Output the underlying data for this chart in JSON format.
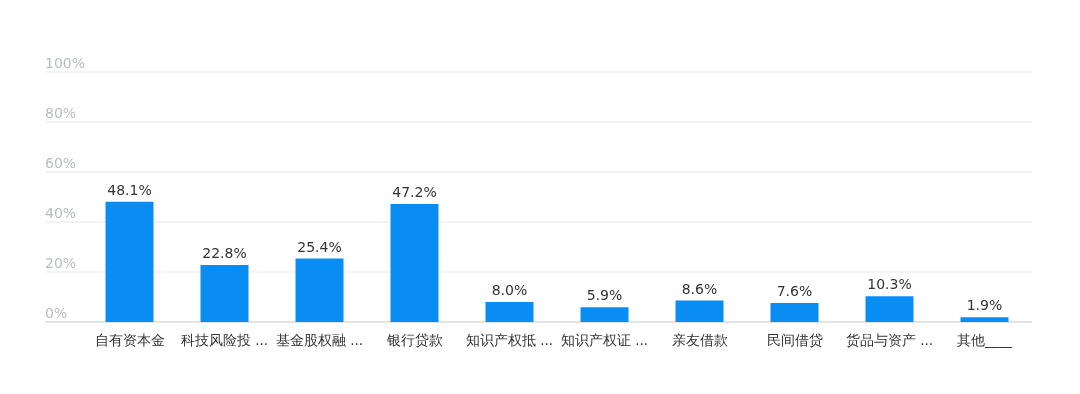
{
  "chart_data": {
    "type": "bar",
    "categories": [
      "自有资本金",
      "科技风险投 ...",
      "基金股权融 ...",
      "银行贷款",
      "知识产权抵 ...",
      "知识产权证 ...",
      "亲友借款",
      "民间借贷",
      "货品与资产 ...",
      "其他____"
    ],
    "values": [
      48.1,
      22.8,
      25.4,
      47.2,
      8.0,
      5.9,
      8.6,
      7.6,
      10.3,
      1.9
    ],
    "value_labels": [
      "48.1%",
      "22.8%",
      "25.4%",
      "47.2%",
      "8.0%",
      "5.9%",
      "8.6%",
      "7.6%",
      "10.3%",
      "1.9%"
    ],
    "color": "#0a8df2",
    "ylim": [
      0,
      100
    ],
    "yticks": [
      {
        "value": 0,
        "label": "0%"
      },
      {
        "value": 20,
        "label": "20%"
      },
      {
        "value": 40,
        "label": "40%"
      },
      {
        "value": 60,
        "label": "60%"
      },
      {
        "value": 80,
        "label": "80%"
      },
      {
        "value": 100,
        "label": "100%"
      }
    ],
    "grid": "y"
  }
}
